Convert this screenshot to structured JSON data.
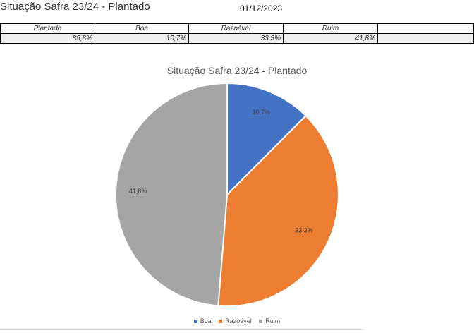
{
  "sheet": {
    "title": "Situação Safra 23/24 - Plantado",
    "date": "01/12/2023"
  },
  "summary_table": {
    "headers": [
      "Plantado",
      "Boa",
      "Razoável",
      "Ruim",
      ""
    ],
    "values": [
      "85,8%",
      "10,7%",
      "33,3%",
      "41,8%",
      ""
    ]
  },
  "chart_data": {
    "type": "pie",
    "title": "Situação Safra 23/24 - Plantado",
    "categories": [
      "Boa",
      "Razoável",
      "Ruim"
    ],
    "values": [
      10.7,
      33.3,
      41.8
    ],
    "data_labels": [
      "10,7%",
      "33,3%",
      "41,8%"
    ],
    "colors": [
      "#4472c4",
      "#ed7d31",
      "#a5a5a5"
    ],
    "legend_position": "bottom"
  }
}
